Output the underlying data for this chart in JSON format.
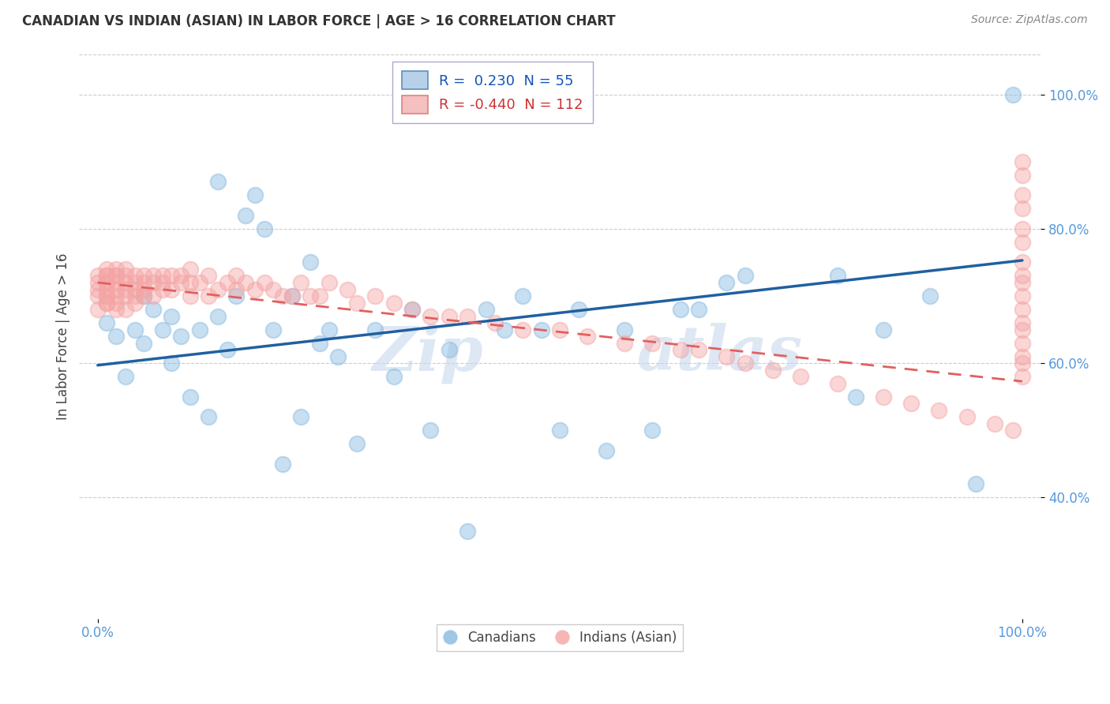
{
  "title": "CANADIAN VS INDIAN (ASIAN) IN LABOR FORCE | AGE > 16 CORRELATION CHART",
  "source": "Source: ZipAtlas.com",
  "ylabel": "In Labor Force | Age > 16",
  "xlim": [
    -0.02,
    1.02
  ],
  "ylim": [
    0.22,
    1.06
  ],
  "y_ticks": [
    0.4,
    0.6,
    0.8,
    1.0
  ],
  "y_tick_labels": [
    "40.0%",
    "60.0%",
    "80.0%",
    "100.0%"
  ],
  "r_canadian": 0.23,
  "n_canadian": 55,
  "r_indian": -0.44,
  "n_indian": 112,
  "canadian_color": "#87b9e0",
  "indian_color": "#f4a4a4",
  "canadian_line_color": "#2060a0",
  "indian_line_color": "#e06060",
  "background_color": "#ffffff",
  "grid_color": "#cccccc",
  "can_line_y0": 0.597,
  "can_line_y1": 0.753,
  "ind_line_y0": 0.72,
  "ind_line_y1": 0.573,
  "canadians_x": [
    0.01,
    0.02,
    0.03,
    0.04,
    0.05,
    0.05,
    0.06,
    0.07,
    0.08,
    0.08,
    0.09,
    0.1,
    0.11,
    0.12,
    0.13,
    0.13,
    0.14,
    0.15,
    0.16,
    0.17,
    0.18,
    0.19,
    0.2,
    0.21,
    0.22,
    0.23,
    0.24,
    0.25,
    0.26,
    0.28,
    0.3,
    0.32,
    0.34,
    0.36,
    0.38,
    0.4,
    0.42,
    0.44,
    0.46,
    0.48,
    0.5,
    0.52,
    0.55,
    0.57,
    0.6,
    0.63,
    0.65,
    0.68,
    0.7,
    0.8,
    0.82,
    0.85,
    0.9,
    0.95,
    0.99
  ],
  "canadians_y": [
    0.66,
    0.64,
    0.58,
    0.65,
    0.7,
    0.63,
    0.68,
    0.65,
    0.6,
    0.67,
    0.64,
    0.55,
    0.65,
    0.52,
    0.67,
    0.87,
    0.62,
    0.7,
    0.82,
    0.85,
    0.8,
    0.65,
    0.45,
    0.7,
    0.52,
    0.75,
    0.63,
    0.65,
    0.61,
    0.48,
    0.65,
    0.58,
    0.68,
    0.5,
    0.62,
    0.35,
    0.68,
    0.65,
    0.7,
    0.65,
    0.5,
    0.68,
    0.47,
    0.65,
    0.5,
    0.68,
    0.68,
    0.72,
    0.73,
    0.73,
    0.55,
    0.65,
    0.7,
    0.42,
    1.0
  ],
  "indians_x": [
    0.0,
    0.0,
    0.0,
    0.0,
    0.0,
    0.01,
    0.01,
    0.01,
    0.01,
    0.01,
    0.01,
    0.01,
    0.01,
    0.01,
    0.01,
    0.02,
    0.02,
    0.02,
    0.02,
    0.02,
    0.02,
    0.02,
    0.02,
    0.03,
    0.03,
    0.03,
    0.03,
    0.03,
    0.03,
    0.04,
    0.04,
    0.04,
    0.04,
    0.04,
    0.05,
    0.05,
    0.05,
    0.05,
    0.06,
    0.06,
    0.06,
    0.07,
    0.07,
    0.07,
    0.08,
    0.08,
    0.09,
    0.09,
    0.1,
    0.1,
    0.1,
    0.11,
    0.12,
    0.12,
    0.13,
    0.14,
    0.15,
    0.15,
    0.16,
    0.17,
    0.18,
    0.19,
    0.2,
    0.21,
    0.22,
    0.23,
    0.24,
    0.25,
    0.27,
    0.28,
    0.3,
    0.32,
    0.34,
    0.36,
    0.38,
    0.4,
    0.43,
    0.46,
    0.5,
    0.53,
    0.57,
    0.6,
    0.63,
    0.65,
    0.68,
    0.7,
    0.73,
    0.76,
    0.8,
    0.85,
    0.88,
    0.91,
    0.94,
    0.97,
    0.99,
    1.0,
    1.0,
    1.0,
    1.0,
    1.0,
    1.0,
    1.0,
    1.0,
    1.0,
    1.0,
    1.0,
    1.0,
    1.0,
    1.0,
    1.0,
    1.0,
    1.0
  ],
  "indians_y": [
    0.72,
    0.7,
    0.68,
    0.73,
    0.71,
    0.73,
    0.72,
    0.71,
    0.7,
    0.69,
    0.74,
    0.73,
    0.72,
    0.7,
    0.69,
    0.74,
    0.73,
    0.72,
    0.71,
    0.7,
    0.69,
    0.68,
    0.73,
    0.74,
    0.73,
    0.72,
    0.71,
    0.7,
    0.68,
    0.73,
    0.72,
    0.71,
    0.7,
    0.69,
    0.73,
    0.72,
    0.71,
    0.7,
    0.73,
    0.72,
    0.7,
    0.73,
    0.72,
    0.71,
    0.73,
    0.71,
    0.73,
    0.72,
    0.74,
    0.72,
    0.7,
    0.72,
    0.73,
    0.7,
    0.71,
    0.72,
    0.73,
    0.71,
    0.72,
    0.71,
    0.72,
    0.71,
    0.7,
    0.7,
    0.72,
    0.7,
    0.7,
    0.72,
    0.71,
    0.69,
    0.7,
    0.69,
    0.68,
    0.67,
    0.67,
    0.67,
    0.66,
    0.65,
    0.65,
    0.64,
    0.63,
    0.63,
    0.62,
    0.62,
    0.61,
    0.6,
    0.59,
    0.58,
    0.57,
    0.55,
    0.54,
    0.53,
    0.52,
    0.51,
    0.5,
    0.9,
    0.88,
    0.85,
    0.83,
    0.8,
    0.78,
    0.75,
    0.73,
    0.72,
    0.7,
    0.68,
    0.66,
    0.65,
    0.63,
    0.61,
    0.6,
    0.58
  ]
}
